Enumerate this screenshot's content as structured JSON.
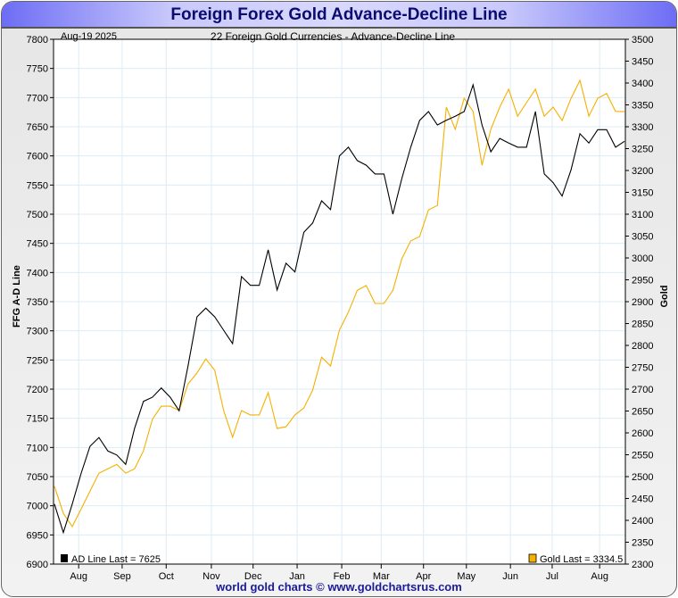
{
  "title": "Foreign Forex Gold Advance-Decline Line",
  "footer": "world gold charts © www.goldchartsrus.com",
  "chart_data": {
    "type": "line",
    "title": "22 Foreign Gold Currencies - Advance-Decline Line",
    "date_label": "Aug-19  2025",
    "ylabel_left": "FFG A-D Line",
    "ylabel_right": "Gold",
    "ylim_left": [
      6900,
      7800
    ],
    "ylim_right": [
      2300,
      3500
    ],
    "yticks_left": [
      6900,
      6950,
      7000,
      7050,
      7100,
      7150,
      7200,
      7250,
      7300,
      7350,
      7400,
      7450,
      7500,
      7550,
      7600,
      7650,
      7700,
      7750,
      7800
    ],
    "yticks_right": [
      2300,
      2350,
      2400,
      2450,
      2500,
      2550,
      2600,
      2650,
      2700,
      2750,
      2800,
      2850,
      2900,
      2950,
      3000,
      3050,
      3100,
      3150,
      3200,
      3250,
      3300,
      3350,
      3400,
      3450,
      3500
    ],
    "xticks": [
      {
        "label": "Aug",
        "pos": 0.044
      },
      {
        "label": "Sep",
        "pos": 0.12
      },
      {
        "label": "Oct",
        "pos": 0.197
      },
      {
        "label": "Nov",
        "pos": 0.276
      },
      {
        "label": "Dec",
        "pos": 0.349
      },
      {
        "label": "Jan",
        "pos": 0.426
      },
      {
        "label": "Feb",
        "pos": 0.504
      },
      {
        "label": "Mar",
        "pos": 0.573
      },
      {
        "label": "Apr",
        "pos": 0.647
      },
      {
        "label": "May",
        "pos": 0.722
      },
      {
        "label": "Jun",
        "pos": 0.799
      },
      {
        "label": "Jul",
        "pos": 0.872
      },
      {
        "label": "Aug",
        "pos": 0.955
      }
    ],
    "grid": true,
    "series": [
      {
        "name": "AD Line",
        "legend": "AD Line Last = 7625",
        "axis": "left",
        "color": "#000000",
        "values": [
          7003,
          6954,
          7003,
          7056,
          7102,
          7117,
          7094,
          7087,
          7071,
          7133,
          7179,
          7186,
          7202,
          7186,
          7163,
          7240,
          7324,
          7339,
          7324,
          7301,
          7278,
          7393,
          7378,
          7378,
          7439,
          7370,
          7416,
          7401,
          7469,
          7485,
          7523,
          7508,
          7600,
          7615,
          7592,
          7584,
          7569,
          7569,
          7500,
          7561,
          7615,
          7661,
          7676,
          7653,
          7661,
          7668,
          7676,
          7722,
          7653,
          7607,
          7630,
          7622,
          7615,
          7615,
          7676,
          7569,
          7554,
          7531,
          7576,
          7638,
          7622,
          7645,
          7645,
          7615,
          7625
        ]
      },
      {
        "name": "Gold",
        "legend": "Gold  Last = 3334.5",
        "axis": "right",
        "color": "#f5b000",
        "values": [
          2478,
          2416,
          2386,
          2426,
          2467,
          2508,
          2518,
          2528,
          2508,
          2518,
          2559,
          2631,
          2661,
          2661,
          2651,
          2712,
          2737,
          2769,
          2743,
          2651,
          2590,
          2651,
          2641,
          2641,
          2692,
          2610,
          2614,
          2641,
          2657,
          2698,
          2773,
          2753,
          2835,
          2876,
          2926,
          2937,
          2896,
          2896,
          2926,
          2998,
          3039,
          3049,
          3110,
          3120,
          3345,
          3294,
          3365,
          3335,
          3212,
          3294,
          3345,
          3386,
          3324,
          3355,
          3386,
          3324,
          3345,
          3314,
          3365,
          3406,
          3324,
          3365,
          3376,
          3335,
          3334.5
        ]
      }
    ]
  }
}
